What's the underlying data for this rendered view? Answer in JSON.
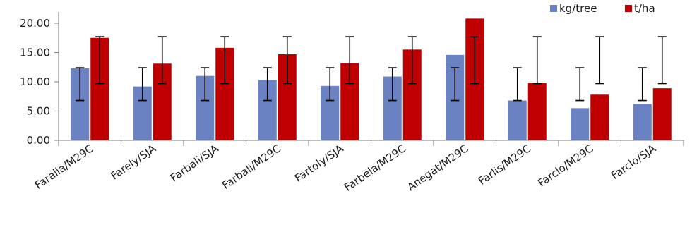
{
  "chart_data": {
    "type": "bar",
    "categories": [
      "Faralia/M29C",
      "Farely/SJA",
      "Farbali/SJA",
      "Farbali/M29C",
      "Fartoly/SJA",
      "Farbela/M29C",
      "Anegat/M29C",
      "Farlis/M29C",
      "Farclo/M29C",
      "Farclo/SJA"
    ],
    "series": [
      {
        "name": "kg/tree",
        "color": "#6a82c2",
        "values": [
          12.3,
          9.2,
          11.0,
          10.3,
          9.3,
          10.9,
          14.6,
          6.8,
          5.5,
          6.2
        ],
        "error_low": [
          6.8,
          6.8,
          6.8,
          6.8,
          6.8,
          6.8,
          6.8,
          6.8,
          6.8,
          6.8
        ],
        "error_high": [
          12.4,
          12.4,
          12.4,
          12.4,
          12.4,
          12.4,
          12.4,
          12.4,
          12.4,
          12.4
        ]
      },
      {
        "name": "t/ha",
        "color": "#c00000",
        "values": [
          17.5,
          13.1,
          15.8,
          14.7,
          13.2,
          15.5,
          20.8,
          9.8,
          7.8,
          8.9
        ],
        "error_low": [
          9.7,
          9.7,
          9.7,
          9.7,
          9.7,
          9.7,
          9.7,
          9.7,
          9.7,
          9.7
        ],
        "error_high": [
          17.7,
          17.7,
          17.7,
          17.7,
          17.7,
          17.7,
          17.7,
          17.7,
          17.7,
          17.7
        ]
      }
    ],
    "title": "",
    "xlabel": "",
    "ylabel": "",
    "ylim": [
      0,
      20
    ],
    "yticks": [
      "0.00",
      "5.00",
      "10.00",
      "15.00",
      "20.00"
    ],
    "grid": false,
    "legend_position": "top-right",
    "error_bars": true
  }
}
